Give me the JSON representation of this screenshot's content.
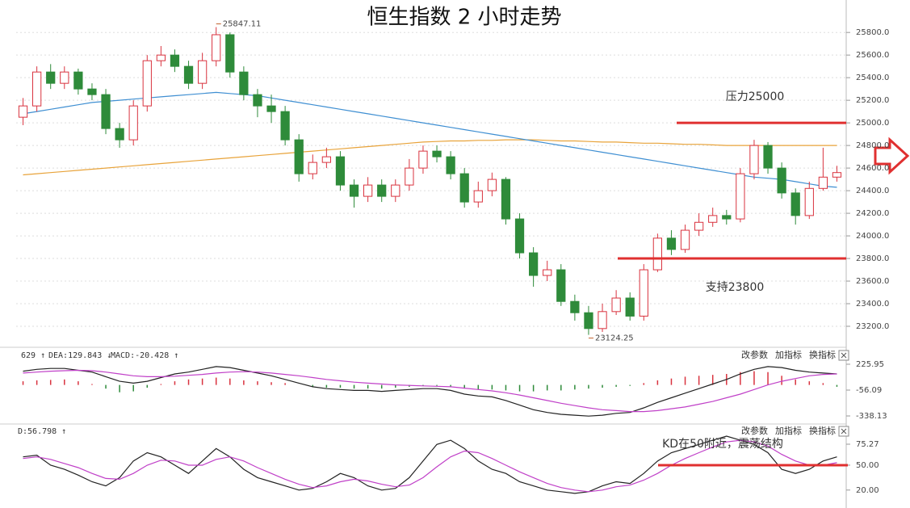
{
  "chart_data": [
    {
      "type": "candlestick",
      "title": "恒生指数 2 小时走势",
      "open": [
        25050,
        25150,
        25450,
        25350,
        25450,
        25300,
        25250,
        24950,
        24850,
        25150,
        25550,
        25600,
        25500,
        25350,
        25550,
        25780,
        25450,
        25250,
        25150,
        25100,
        24850,
        24550,
        24650,
        24700,
        24450,
        24350,
        24450,
        24350,
        24450,
        24600,
        24750,
        24700,
        24550,
        24300,
        24400,
        24500,
        24150,
        23850,
        23650,
        23700,
        23420,
        23320,
        23180,
        23330,
        23450,
        23290,
        23700,
        23980,
        23880,
        24050,
        24120,
        24180,
        24150,
        24550,
        24800,
        24600,
        24380,
        24180,
        24420,
        24520
      ],
      "high": [
        25220,
        25500,
        25520,
        25500,
        25480,
        25350,
        25300,
        25000,
        25200,
        25600,
        25680,
        25650,
        25550,
        25620,
        25847.11,
        25800,
        25500,
        25300,
        25250,
        25150,
        24900,
        24720,
        24780,
        24750,
        24500,
        24520,
        24500,
        24500,
        24680,
        24800,
        24800,
        24750,
        24600,
        24480,
        24560,
        24520,
        24200,
        23900,
        23780,
        23750,
        23480,
        23380,
        23400,
        23520,
        23500,
        23750,
        24020,
        24050,
        24100,
        24200,
        24250,
        24230,
        24600,
        24850,
        24830,
        24650,
        24420,
        24480,
        24780,
        24620
      ],
      "low": [
        24980,
        25100,
        25300,
        25300,
        25250,
        25200,
        24900,
        24780,
        24800,
        25100,
        25500,
        25450,
        25300,
        25300,
        25500,
        25400,
        25200,
        25050,
        25000,
        24800,
        24480,
        24500,
        24600,
        24400,
        24250,
        24300,
        24300,
        24300,
        24400,
        24550,
        24650,
        24500,
        24250,
        24250,
        24350,
        24100,
        23800,
        23550,
        23600,
        23380,
        23250,
        23124.25,
        23150,
        23300,
        23250,
        23250,
        23680,
        23830,
        23850,
        24000,
        24080,
        24100,
        24120,
        24500,
        24550,
        24330,
        24100,
        24150,
        24400,
        24480
      ],
      "close": [
        25150,
        25450,
        25350,
        25450,
        25300,
        25250,
        24950,
        24850,
        25150,
        25550,
        25600,
        25500,
        25350,
        25550,
        25780,
        25450,
        25250,
        25150,
        25100,
        24850,
        24550,
        24650,
        24700,
        24450,
        24350,
        24450,
        24350,
        24450,
        24600,
        24750,
        24700,
        24550,
        24300,
        24400,
        24500,
        24150,
        23850,
        23650,
        23700,
        23420,
        23320,
        23180,
        23330,
        23450,
        23290,
        23700,
        23980,
        23880,
        24050,
        24120,
        24180,
        24150,
        24550,
        24800,
        24600,
        24380,
        24180,
        24420,
        24520,
        24560
      ],
      "up_color": "#d9333f",
      "down_color": "#2e8b3a",
      "series": [
        {
          "color": "#e8a33a",
          "values": [
            24540,
            24550,
            24560,
            24570,
            24580,
            24590,
            24600,
            24610,
            24620,
            24630,
            24640,
            24650,
            24660,
            24670,
            24680,
            24690,
            24700,
            24710,
            24720,
            24730,
            24740,
            24750,
            24760,
            24770,
            24780,
            24790,
            24800,
            24810,
            24820,
            24830,
            24835,
            24840,
            24840,
            24845,
            24845,
            24850,
            24850,
            24850,
            24845,
            24840,
            24840,
            24835,
            24830,
            24830,
            24825,
            24820,
            24820,
            24815,
            24810,
            24810,
            24805,
            24800,
            24800,
            24800,
            24800,
            24800,
            24800,
            24800,
            24800,
            24800
          ]
        },
        {
          "color": "#3f8fd2",
          "values": [
            25080,
            25100,
            25120,
            25140,
            25160,
            25180,
            25190,
            25200,
            25210,
            25220,
            25230,
            25240,
            25250,
            25260,
            25270,
            25260,
            25250,
            25240,
            25220,
            25200,
            25180,
            25160,
            25140,
            25120,
            25100,
            25080,
            25060,
            25040,
            25020,
            25000,
            24980,
            24960,
            24940,
            24920,
            24900,
            24880,
            24860,
            24840,
            24820,
            24800,
            24780,
            24760,
            24740,
            24720,
            24700,
            24680,
            24660,
            24640,
            24620,
            24600,
            24580,
            24560,
            24540,
            24520,
            24510,
            24500,
            24480,
            24460,
            24440,
            24430
          ]
        }
      ],
      "ylim": [
        23050,
        25980
      ],
      "yticks": [
        {
          "value": 23200,
          "label": "23200.0"
        },
        {
          "value": 23400,
          "label": "23400.0"
        },
        {
          "value": 23600,
          "label": "23600.0"
        },
        {
          "value": 23800,
          "label": "23800.0"
        },
        {
          "value": 24000,
          "label": "24000.0"
        },
        {
          "value": 24200,
          "label": "24200.0"
        },
        {
          "value": 24400,
          "label": "24400.0"
        },
        {
          "value": 24600,
          "label": "24600.0"
        },
        {
          "value": 24800,
          "label": "24800.0"
        },
        {
          "value": 25000,
          "label": "25000.0"
        },
        {
          "value": 25200,
          "label": "25200.0"
        },
        {
          "value": 25400,
          "label": "25400.0"
        },
        {
          "value": 25600,
          "label": "25600.0"
        },
        {
          "value": 25800,
          "label": "25800.0"
        }
      ],
      "grid": true,
      "annotations": [
        {
          "text": "压力25000",
          "value": 25000,
          "color": "#e03030"
        },
        {
          "text": "支持23800",
          "value": 23800,
          "color": "#e03030"
        }
      ],
      "extreme_labels": [
        "25847.11",
        "23124.25"
      ]
    },
    {
      "type": "macd",
      "header": [
        "629 ↑",
        "DEA:129.843 ↓",
        "MACD:-20.428 ↑"
      ],
      "toolbar": [
        "改参数",
        "加指标",
        "换指标"
      ],
      "series": [
        {
          "color": "#222222",
          "values": [
            150,
            170,
            180,
            180,
            160,
            140,
            90,
            40,
            20,
            40,
            80,
            120,
            140,
            170,
            200,
            190,
            160,
            130,
            100,
            60,
            20,
            -20,
            -40,
            -50,
            -60,
            -60,
            -70,
            -60,
            -50,
            -40,
            -40,
            -60,
            -100,
            -120,
            -130,
            -170,
            -220,
            -270,
            -300,
            -320,
            -330,
            -340,
            -330,
            -310,
            -300,
            -250,
            -190,
            -140,
            -90,
            -40,
            10,
            60,
            120,
            170,
            200,
            190,
            160,
            140,
            130,
            120
          ]
        },
        {
          "color": "#c040c8",
          "values": [
            130,
            140,
            150,
            155,
            160,
            155,
            140,
            120,
            100,
            90,
            90,
            95,
            105,
            115,
            130,
            140,
            145,
            140,
            130,
            115,
            100,
            80,
            60,
            45,
            30,
            20,
            10,
            0,
            -5,
            -10,
            -15,
            -20,
            -35,
            -50,
            -65,
            -85,
            -110,
            -140,
            -170,
            -200,
            -225,
            -250,
            -270,
            -280,
            -290,
            -290,
            -280,
            -260,
            -240,
            -210,
            -180,
            -140,
            -100,
            -50,
            0,
            40,
            70,
            100,
            115,
            120
          ]
        }
      ],
      "values": [
        40,
        50,
        55,
        60,
        40,
        10,
        -40,
        -80,
        -70,
        -30,
        10,
        40,
        60,
        70,
        80,
        70,
        50,
        40,
        30,
        20,
        0,
        -20,
        -30,
        -30,
        -40,
        -40,
        -40,
        -30,
        -20,
        -10,
        -10,
        -20,
        -40,
        -50,
        -50,
        -60,
        -70,
        -70,
        -60,
        -60,
        -50,
        -40,
        -30,
        -20,
        -10,
        20,
        50,
        70,
        90,
        100,
        110,
        120,
        140,
        150,
        140,
        100,
        60,
        40,
        20,
        -20
      ],
      "up_color": "#d9333f",
      "down_color": "#2e8b3a",
      "ylim": [
        -382,
        261
      ],
      "yticks": [
        225.95,
        -56.09,
        -338.13
      ]
    },
    {
      "type": "kd",
      "header": [
        "D:56.798 ↑"
      ],
      "toolbar": [
        "改参数",
        "加指标",
        "换指标"
      ],
      "series": [
        {
          "color": "#222222",
          "values": [
            60,
            62,
            50,
            45,
            38,
            30,
            25,
            35,
            55,
            65,
            60,
            50,
            40,
            55,
            70,
            60,
            45,
            35,
            30,
            25,
            20,
            22,
            30,
            40,
            35,
            25,
            20,
            22,
            35,
            55,
            75,
            80,
            70,
            55,
            45,
            40,
            30,
            25,
            20,
            18,
            16,
            18,
            25,
            30,
            28,
            40,
            55,
            65,
            70,
            75,
            80,
            85,
            80,
            75,
            65,
            45,
            40,
            45,
            55,
            60
          ]
        },
        {
          "color": "#c040c8",
          "values": [
            58,
            60,
            57,
            52,
            47,
            40,
            34,
            33,
            40,
            50,
            56,
            55,
            50,
            50,
            57,
            60,
            55,
            47,
            40,
            33,
            27,
            23,
            25,
            30,
            33,
            31,
            27,
            24,
            26,
            35,
            48,
            60,
            67,
            65,
            58,
            50,
            42,
            35,
            28,
            23,
            20,
            18,
            20,
            24,
            26,
            32,
            40,
            50,
            58,
            65,
            72,
            78,
            80,
            78,
            73,
            63,
            55,
            50,
            50,
            53
          ]
        }
      ],
      "ylim": [
        12,
        85
      ],
      "yticks": [
        75.27,
        {
          "value": 50,
          "label": "50.00"
        },
        {
          "value": 20,
          "label": "20.00"
        }
      ],
      "annotations": [
        {
          "text": "KD在50附近，震荡结构",
          "value": 50,
          "color": "#e03030"
        }
      ]
    }
  ]
}
